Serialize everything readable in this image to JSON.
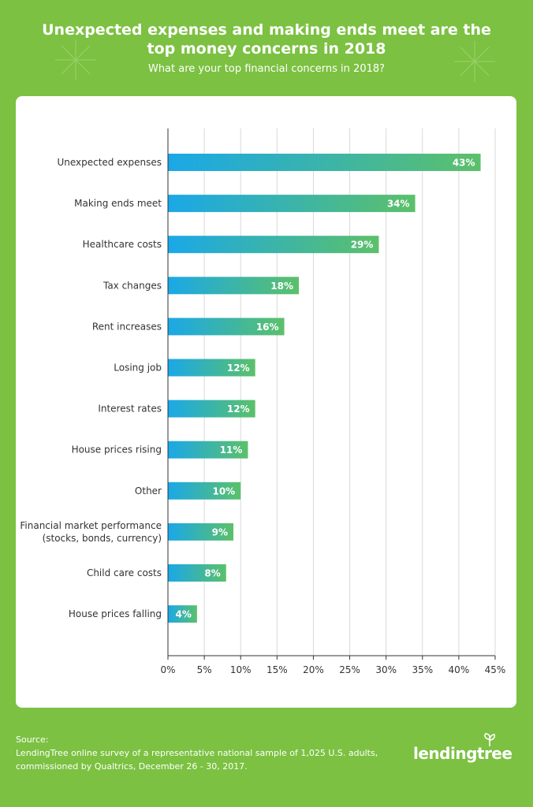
{
  "header": {
    "title": "Unexpected expenses and making ends meet are the top money concerns in 2018",
    "subtitle": "What are your top financial concerns in 2018?"
  },
  "colors": {
    "background": "#7cc142",
    "bar_start": "#1aa8e8",
    "bar_end": "#5cc06a",
    "grid": "#d9d9d9",
    "axis": "#333333"
  },
  "chart_data": {
    "type": "bar",
    "orientation": "horizontal",
    "categories": [
      "Unexpected expenses",
      "Making ends meet",
      "Healthcare costs",
      "Tax changes",
      "Rent increases",
      "Losing job",
      "Interest rates",
      "House prices rising",
      "Other",
      "Financial market performance\n(stocks, bonds, currency)",
      "Child care costs",
      "House prices falling"
    ],
    "values": [
      43,
      34,
      29,
      18,
      16,
      12,
      12,
      11,
      10,
      9,
      8,
      4
    ],
    "data_labels": [
      "43%",
      "34%",
      "29%",
      "18%",
      "16%",
      "12%",
      "12%",
      "11%",
      "10%",
      "9%",
      "8%",
      "4%"
    ],
    "xlim": [
      0,
      45
    ],
    "x_ticks": [
      "0%",
      "5%",
      "10%",
      "15%",
      "20%",
      "25%",
      "30%",
      "35%",
      "40%",
      "45%"
    ],
    "grid": true
  },
  "footer": {
    "source_label": "Source:",
    "source_line1": "LendingTree online survey of a representative national sample of 1,025 U.S. adults,",
    "source_line2": "commissioned by Qualtrics, December 26 - 30, 2017."
  },
  "logo": {
    "text": "lendingtree",
    "icon": "tree-leaf-icon"
  }
}
